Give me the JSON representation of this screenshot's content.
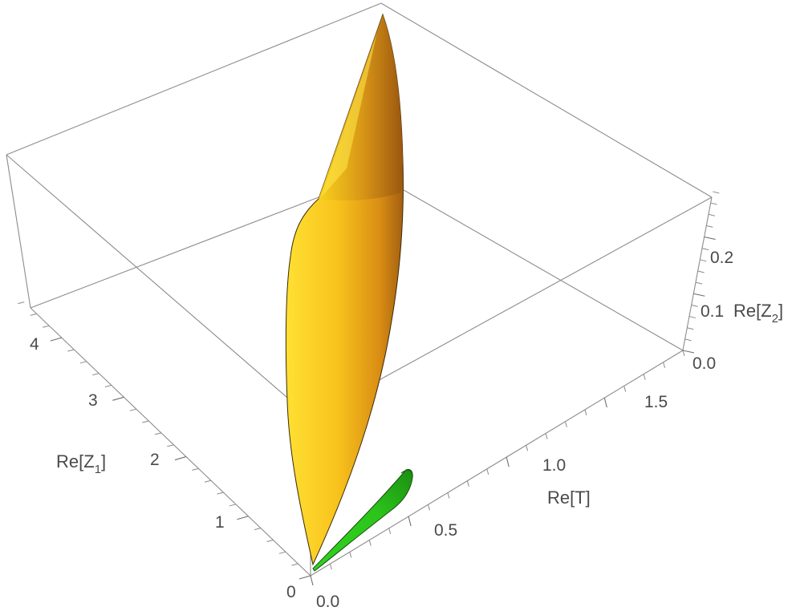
{
  "chart_data": {
    "type": "surface3d",
    "axes": {
      "x": {
        "label": "Re[T]",
        "range": [
          0,
          1.9
        ],
        "ticks": [
          "0.0",
          "0.5",
          "1.0",
          "1.5"
        ],
        "tick_values": [
          0,
          0.5,
          1.0,
          1.5
        ]
      },
      "y": {
        "label_prefix": "Re[Z",
        "label_sub": "1",
        "label_suffix": "]",
        "range": [
          0,
          4.5
        ],
        "ticks": [
          "0",
          "1",
          "2",
          "3",
          "4"
        ],
        "tick_values": [
          0,
          1,
          2,
          3,
          4
        ]
      },
      "z": {
        "label_prefix": "Re[Z",
        "label_sub": "2",
        "label_suffix": "]",
        "range": [
          0,
          0.27
        ],
        "ticks": [
          "0.0",
          "0.1",
          "0.2"
        ],
        "tick_values": [
          0,
          0.1,
          0.2
        ]
      }
    },
    "surfaces": [
      {
        "color": "#f5c518",
        "shade_color": "#a86a12",
        "extent": {
          "t_max": 0.07,
          "z1_max": 4.5,
          "z2_max": 0.27
        }
      },
      {
        "color": "#33d11e",
        "shade_color": "#137a0c",
        "extent": {
          "t_max": 0.75,
          "z1_max": 0.05,
          "z2_max": 0.01
        }
      }
    ],
    "grid": false,
    "box": true
  }
}
